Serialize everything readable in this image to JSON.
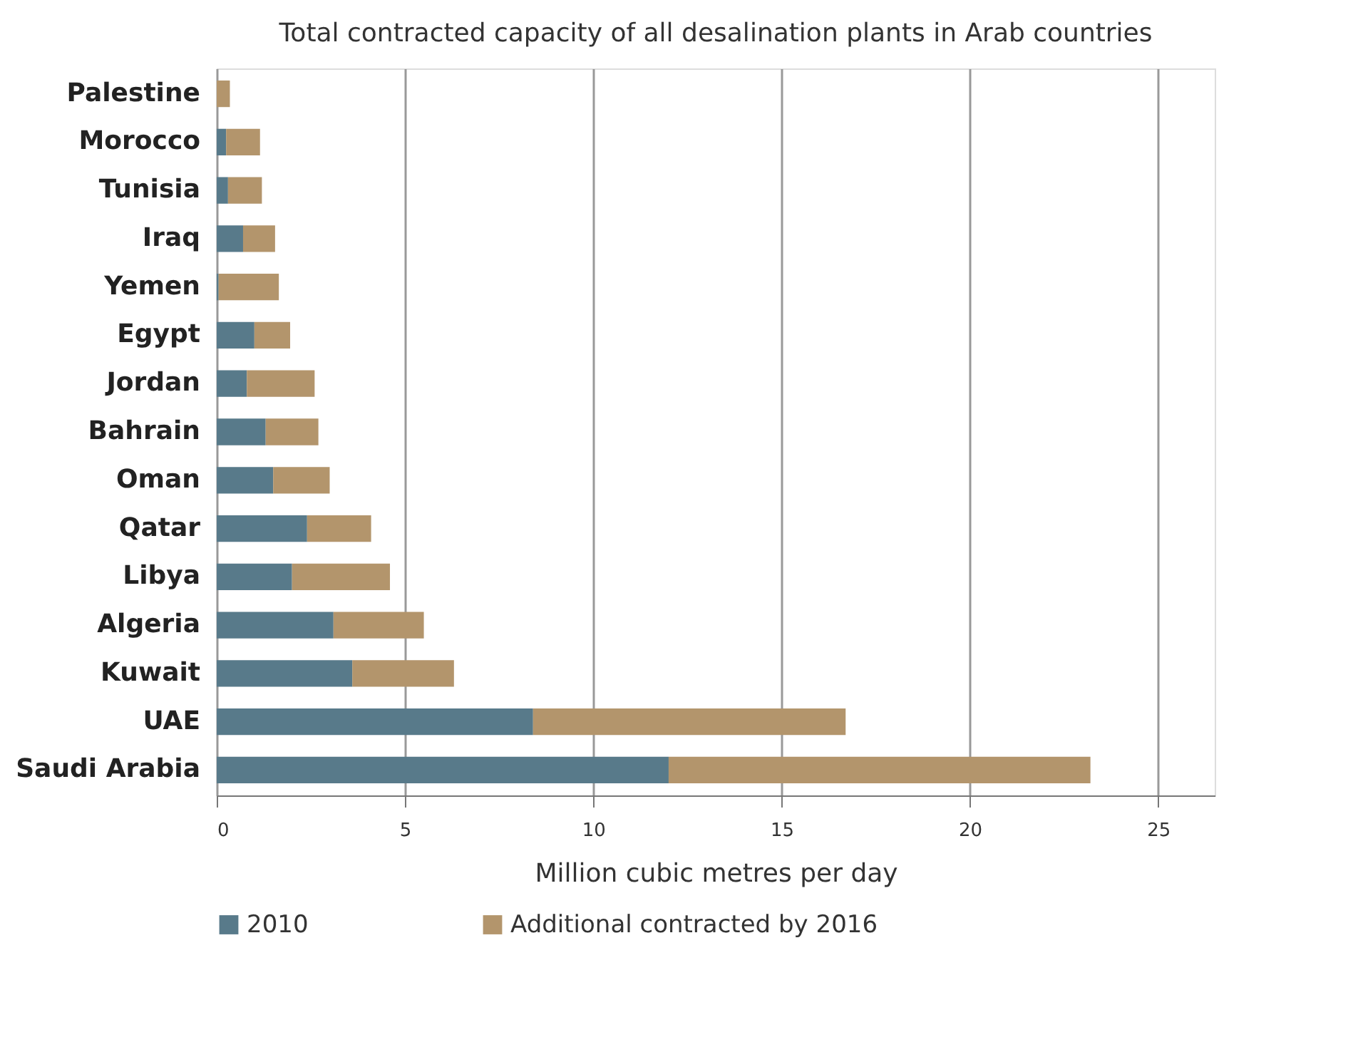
{
  "chart_data": {
    "type": "bar",
    "orientation": "horizontal",
    "stacked": true,
    "title": "Total contracted capacity of all desalination plants in Arab countries",
    "xlabel": "Million cubic metres per day",
    "categories": [
      "Palestine",
      "Morocco",
      "Tunisia",
      "Iraq",
      "Yemen",
      "Egypt",
      "Jordan",
      "Bahrain",
      "Oman",
      "Qatar",
      "Libya",
      "Algeria",
      "Kuwait",
      "UAE",
      "Saudi Arabia"
    ],
    "series": [
      {
        "name": "2010",
        "color": "#587a8a",
        "values": [
          0,
          0.25,
          0.3,
          0.7,
          0.05,
          1.0,
          0.8,
          1.3,
          1.5,
          2.4,
          2.0,
          3.1,
          3.6,
          8.4,
          12.0
        ]
      },
      {
        "name": "Additional contracted by 2016",
        "color": "#b3956c",
        "values": [
          0.35,
          0.9,
          0.9,
          0.85,
          1.6,
          0.95,
          1.8,
          1.4,
          1.5,
          1.7,
          2.6,
          2.4,
          2.7,
          8.3,
          11.2
        ]
      }
    ],
    "xlim": [
      0,
      26.5
    ],
    "xticks": [
      0,
      5,
      10,
      15,
      20,
      25
    ],
    "grid": "x",
    "legend": "bottom"
  }
}
